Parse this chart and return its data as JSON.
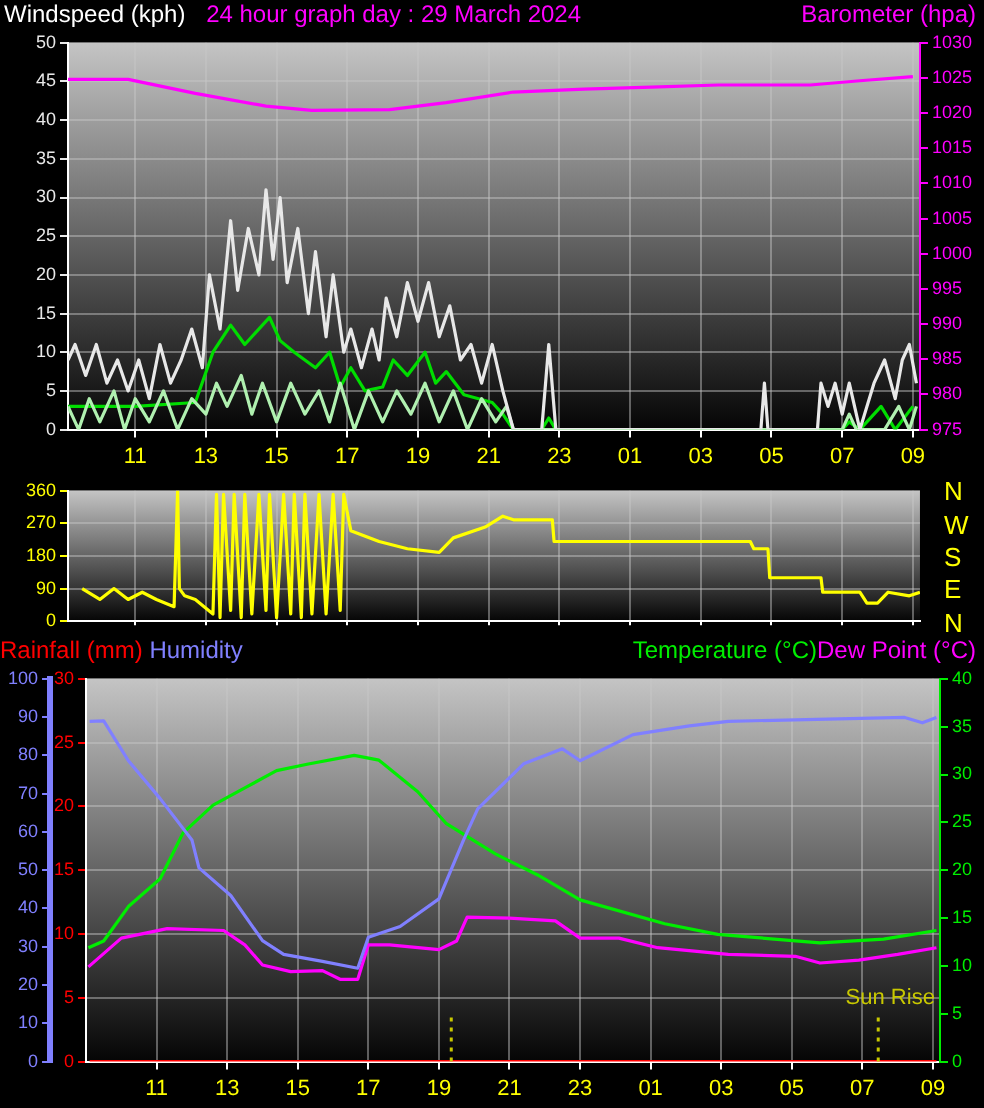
{
  "chart_data": [
    {
      "type": "line",
      "title": "24 hour graph day : 29 March 2024",
      "ylabel": "Windspeed (kph)",
      "y2label": "Barometer (hpa)",
      "xlim": [
        "2024-03-29T09:06",
        "2024-03-30T09:12"
      ],
      "xticks": [
        {
          "value": "2024-03-29T11:00",
          "label": "11"
        },
        {
          "value": "2024-03-29T13:00",
          "label": "13"
        },
        {
          "value": "2024-03-29T15:00",
          "label": "15"
        },
        {
          "value": "2024-03-29T17:00",
          "label": "17"
        },
        {
          "value": "2024-03-29T19:00",
          "label": "19"
        },
        {
          "value": "2024-03-29T21:00",
          "label": "21"
        },
        {
          "value": "2024-03-29T23:00",
          "label": "23"
        },
        {
          "value": "2024-03-30T01:00",
          "label": "01"
        },
        {
          "value": "2024-03-30T03:00",
          "label": "03"
        },
        {
          "value": "2024-03-30T05:00",
          "label": "05"
        },
        {
          "value": "2024-03-30T07:00",
          "label": "07"
        },
        {
          "value": "2024-03-30T09:00",
          "label": "09"
        }
      ],
      "ylim": [
        0,
        50
      ],
      "yticks": [
        0,
        5,
        10,
        15,
        20,
        25,
        30,
        35,
        40,
        45,
        50
      ],
      "y2lim": [
        975,
        1030
      ],
      "y2ticks": [
        975,
        980,
        985,
        990,
        995,
        1000,
        1005,
        1010,
        1015,
        1020,
        1025,
        1030
      ],
      "grid": true,
      "legend": false,
      "marker": "none",
      "line_style": "solid",
      "series": [
        {
          "color": "#e8e8e8",
          "x": [
            "2024-03-29T09:06",
            "2024-03-29T09:18",
            "2024-03-29T09:36",
            "2024-03-29T09:54",
            "2024-03-29T10:12",
            "2024-03-29T10:30",
            "2024-03-29T10:48",
            "2024-03-29T11:06",
            "2024-03-29T11:24",
            "2024-03-29T11:42",
            "2024-03-29T12:00",
            "2024-03-29T12:18",
            "2024-03-29T12:36",
            "2024-03-29T12:54",
            "2024-03-29T13:06",
            "2024-03-29T13:24",
            "2024-03-29T13:42",
            "2024-03-29T13:54",
            "2024-03-29T14:12",
            "2024-03-29T14:30",
            "2024-03-29T14:42",
            "2024-03-29T14:54",
            "2024-03-29T15:06",
            "2024-03-29T15:18",
            "2024-03-29T15:36",
            "2024-03-29T15:54",
            "2024-03-29T16:06",
            "2024-03-29T16:24",
            "2024-03-29T16:36",
            "2024-03-29T16:54",
            "2024-03-29T17:06",
            "2024-03-29T17:24",
            "2024-03-29T17:42",
            "2024-03-29T17:54",
            "2024-03-29T18:06",
            "2024-03-29T18:24",
            "2024-03-29T18:42",
            "2024-03-29T19:00",
            "2024-03-29T19:18",
            "2024-03-29T19:36",
            "2024-03-29T19:54",
            "2024-03-29T20:12",
            "2024-03-29T20:30",
            "2024-03-29T20:48",
            "2024-03-29T21:06",
            "2024-03-29T21:24",
            "2024-03-29T21:42",
            "2024-03-29T22:30",
            "2024-03-29T22:42",
            "2024-03-29T22:54",
            "2024-03-30T04:42",
            "2024-03-30T04:48",
            "2024-03-30T04:54",
            "2024-03-30T06:18",
            "2024-03-30T06:24",
            "2024-03-30T06:36",
            "2024-03-30T06:48",
            "2024-03-30T07:00",
            "2024-03-30T07:12",
            "2024-03-30T07:30",
            "2024-03-30T07:54",
            "2024-03-30T08:12",
            "2024-03-30T08:30",
            "2024-03-30T08:42",
            "2024-03-30T08:54",
            "2024-03-30T09:06"
          ],
          "values": [
            9,
            11,
            7,
            11,
            6,
            9,
            5,
            9,
            4,
            11,
            6,
            9,
            13,
            8,
            20,
            13,
            27,
            18,
            26,
            20,
            31,
            22,
            30,
            19,
            26,
            15,
            23,
            12,
            20,
            10,
            13,
            8,
            13,
            9,
            17,
            12,
            19,
            14,
            19,
            12,
            16,
            9,
            11,
            6,
            11,
            5,
            0,
            0,
            11,
            0,
            0,
            6,
            0,
            0,
            6,
            3,
            6,
            2,
            6,
            0,
            6,
            9,
            4,
            9,
            11,
            6
          ]
        },
        {
          "color": "#b0f0b0",
          "x": [
            "2024-03-29T09:06",
            "2024-03-29T09:24",
            "2024-03-29T09:42",
            "2024-03-29T10:00",
            "2024-03-29T10:24",
            "2024-03-29T10:42",
            "2024-03-29T11:00",
            "2024-03-29T11:24",
            "2024-03-29T11:48",
            "2024-03-29T12:12",
            "2024-03-29T12:36",
            "2024-03-29T13:00",
            "2024-03-29T13:18",
            "2024-03-29T13:36",
            "2024-03-29T14:00",
            "2024-03-29T14:18",
            "2024-03-29T14:36",
            "2024-03-29T15:00",
            "2024-03-29T15:24",
            "2024-03-29T15:48",
            "2024-03-29T16:12",
            "2024-03-29T16:30",
            "2024-03-29T16:48",
            "2024-03-29T17:12",
            "2024-03-29T17:36",
            "2024-03-29T18:00",
            "2024-03-29T18:24",
            "2024-03-29T18:48",
            "2024-03-29T19:12",
            "2024-03-29T19:36",
            "2024-03-29T20:00",
            "2024-03-29T20:24",
            "2024-03-29T20:48",
            "2024-03-29T21:12",
            "2024-03-29T21:30",
            "2024-03-29T21:42",
            "2024-03-30T07:00",
            "2024-03-30T07:12",
            "2024-03-30T07:24",
            "2024-03-30T08:12",
            "2024-03-30T08:36",
            "2024-03-30T08:54",
            "2024-03-30T09:06"
          ],
          "values": [
            3,
            0,
            4,
            1,
            5,
            0,
            4,
            1,
            5,
            0,
            4,
            2,
            6,
            3,
            7,
            2,
            6,
            1,
            6,
            2,
            5,
            1,
            6,
            0,
            5,
            1,
            5,
            2,
            6,
            1,
            5,
            0,
            4,
            1,
            3,
            0,
            0,
            2,
            0,
            0,
            3,
            0,
            3
          ]
        },
        {
          "color": "#00dd00",
          "x": [
            "2024-03-29T09:06",
            "2024-03-29T11:00",
            "2024-03-29T12:42",
            "2024-03-29T13:12",
            "2024-03-29T13:42",
            "2024-03-29T14:06",
            "2024-03-29T14:48",
            "2024-03-29T15:06",
            "2024-03-29T15:30",
            "2024-03-29T16:06",
            "2024-03-29T16:30",
            "2024-03-29T16:48",
            "2024-03-29T17:06",
            "2024-03-29T17:30",
            "2024-03-29T18:00",
            "2024-03-29T18:18",
            "2024-03-29T18:42",
            "2024-03-29T19:12",
            "2024-03-29T19:30",
            "2024-03-29T19:48",
            "2024-03-29T20:18",
            "2024-03-29T21:06",
            "2024-03-29T21:24",
            "2024-03-29T21:42",
            "2024-03-29T22:30",
            "2024-03-29T22:42",
            "2024-03-29T22:54",
            "2024-03-30T07:00",
            "2024-03-30T07:12",
            "2024-03-30T07:30",
            "2024-03-30T08:06",
            "2024-03-30T08:30",
            "2024-03-30T09:00"
          ],
          "values": [
            3,
            3,
            3.5,
            10,
            13.5,
            11,
            14.5,
            11.5,
            10,
            8,
            10,
            5.5,
            8,
            5,
            5.5,
            9,
            7,
            10,
            6,
            7.5,
            4.5,
            3.5,
            2,
            0,
            0,
            1.5,
            0,
            0,
            1,
            0,
            3,
            0,
            3
          ]
        },
        {
          "axis": "y2",
          "color": "#ff00ff",
          "x": [
            "2024-03-29T09:06",
            "2024-03-29T10:48",
            "2024-03-29T12:42",
            "2024-03-29T14:42",
            "2024-03-29T16:00",
            "2024-03-29T18:12",
            "2024-03-29T19:48",
            "2024-03-29T21:42",
            "2024-03-29T23:42",
            "2024-03-30T01:36",
            "2024-03-30T03:30",
            "2024-03-30T06:06",
            "2024-03-30T07:30",
            "2024-03-30T09:00"
          ],
          "values": [
            1024.8,
            1024.8,
            1022.8,
            1021,
            1020.4,
            1020.5,
            1021.5,
            1023,
            1023.4,
            1023.7,
            1024,
            1024,
            1024.6,
            1025.2
          ]
        }
      ]
    },
    {
      "type": "line",
      "xlim": [
        "2024-03-29T09:06",
        "2024-03-30T09:12"
      ],
      "tick_labels": "y",
      "xticks": [
        "2024-03-29T11:00",
        "2024-03-29T13:00",
        "2024-03-29T15:00",
        "2024-03-29T17:00",
        "2024-03-29T19:00",
        "2024-03-29T21:00",
        "2024-03-29T23:00",
        "2024-03-30T01:00",
        "2024-03-30T03:00",
        "2024-03-30T05:00",
        "2024-03-30T07:00",
        "2024-03-30T09:00"
      ],
      "ylim": [
        0,
        360
      ],
      "yticks": [
        0,
        90,
        180,
        270,
        360
      ],
      "annotations": [
        "N",
        "W",
        "S",
        "E",
        "N"
      ],
      "grid": true,
      "legend": false,
      "marker": "none",
      "line_style": "solid",
      "series": [
        {
          "color": "#ffff00",
          "x": [
            "2024-03-29T09:30",
            "2024-03-29T10:00",
            "2024-03-29T10:24",
            "2024-03-29T10:48",
            "2024-03-29T11:12",
            "2024-03-29T11:36",
            "2024-03-29T12:06",
            "2024-03-29T12:12",
            "2024-03-29T12:15",
            "2024-03-29T12:24",
            "2024-03-29T12:42",
            "2024-03-29T13:12",
            "2024-03-29T13:18",
            "2024-03-29T13:24",
            "2024-03-29T13:30",
            "2024-03-29T13:42",
            "2024-03-29T13:48",
            "2024-03-29T14:00",
            "2024-03-29T14:06",
            "2024-03-29T14:18",
            "2024-03-29T14:30",
            "2024-03-29T14:42",
            "2024-03-29T14:48",
            "2024-03-29T15:00",
            "2024-03-29T15:12",
            "2024-03-29T15:24",
            "2024-03-29T15:30",
            "2024-03-29T15:42",
            "2024-03-29T15:48",
            "2024-03-29T16:00",
            "2024-03-29T16:12",
            "2024-03-29T16:24",
            "2024-03-29T16:36",
            "2024-03-29T16:48",
            "2024-03-29T16:54",
            "2024-03-29T17:06",
            "2024-03-29T17:54",
            "2024-03-29T18:42",
            "2024-03-29T19:36",
            "2024-03-29T20:00",
            "2024-03-29T20:54",
            "2024-03-29T21:24",
            "2024-03-29T21:42",
            "2024-03-29T22:48",
            "2024-03-29T22:51",
            "2024-03-30T04:24",
            "2024-03-30T04:30",
            "2024-03-30T04:54",
            "2024-03-30T04:57",
            "2024-03-30T06:24",
            "2024-03-30T06:27",
            "2024-03-30T07:30",
            "2024-03-30T07:42",
            "2024-03-30T08:00",
            "2024-03-30T08:18",
            "2024-03-30T08:54",
            "2024-03-30T09:12"
          ],
          "values": [
            90,
            60,
            90,
            60,
            80,
            60,
            40,
            360,
            90,
            70,
            60,
            20,
            350,
            10,
            350,
            30,
            350,
            10,
            350,
            20,
            350,
            30,
            350,
            10,
            350,
            20,
            350,
            10,
            350,
            20,
            350,
            20,
            350,
            30,
            350,
            250,
            220,
            200,
            190,
            230,
            260,
            290,
            280,
            280,
            220,
            220,
            200,
            200,
            120,
            120,
            80,
            80,
            50,
            50,
            80,
            70,
            80
          ]
        }
      ]
    },
    {
      "type": "line",
      "xlim": [
        "2024-03-29T09:00",
        "2024-03-30T09:12"
      ],
      "xticks": [
        {
          "value": "2024-03-29T11:00",
          "label": "11"
        },
        {
          "value": "2024-03-29T13:00",
          "label": "13"
        },
        {
          "value": "2024-03-29T15:00",
          "label": "15"
        },
        {
          "value": "2024-03-29T17:00",
          "label": "17"
        },
        {
          "value": "2024-03-29T19:00",
          "label": "19"
        },
        {
          "value": "2024-03-29T21:00",
          "label": "21"
        },
        {
          "value": "2024-03-29T23:00",
          "label": "23"
        },
        {
          "value": "2024-03-30T01:00",
          "label": "01"
        },
        {
          "value": "2024-03-30T03:00",
          "label": "03"
        },
        {
          "value": "2024-03-30T05:00",
          "label": "05"
        },
        {
          "value": "2024-03-30T07:00",
          "label": "07"
        },
        {
          "value": "2024-03-30T09:00",
          "label": "09"
        }
      ],
      "ylim": [
        0,
        30
      ],
      "yticks": [
        0,
        5,
        10,
        15,
        20,
        25,
        30
      ],
      "y2lim": [
        0,
        40
      ],
      "y2ticks": [
        0,
        5,
        10,
        15,
        20,
        25,
        30,
        35,
        40
      ],
      "y3lim": [
        0,
        100
      ],
      "y3ticks": [
        0,
        10,
        20,
        30,
        40,
        50,
        60,
        70,
        80,
        90,
        100
      ],
      "grid": true,
      "legend": "top",
      "marker": "none",
      "line_style": "solid",
      "ref_lines": [
        {
          "axis": "x",
          "value": "2024-03-29T19:21",
          "label": null,
          "color": "#c8c800",
          "line_style": "dotted"
        },
        {
          "axis": "x",
          "value": "2024-03-30T07:27",
          "label": "Sun Rise",
          "color": "#c8c800",
          "line_style": "dotted"
        }
      ],
      "series": [
        {
          "name": "Rainfall (mm)",
          "color": "#ff0000",
          "x": [
            "2024-03-29T09:06",
            "2024-03-30T09:06"
          ],
          "values": [
            0,
            0
          ]
        },
        {
          "name": "Humidity",
          "axis": "y3",
          "color": "#8080ff",
          "x": [
            "2024-03-29T09:06",
            "2024-03-29T09:30",
            "2024-03-29T10:12",
            "2024-03-29T11:06",
            "2024-03-29T12:00",
            "2024-03-29T12:12",
            "2024-03-29T13:06",
            "2024-03-29T14:00",
            "2024-03-29T14:36",
            "2024-03-29T15:42",
            "2024-03-29T16:42",
            "2024-03-29T17:00",
            "2024-03-29T17:54",
            "2024-03-29T19:00",
            "2024-03-29T19:42",
            "2024-03-29T20:06",
            "2024-03-29T21:24",
            "2024-03-29T22:30",
            "2024-03-29T23:00",
            "2024-03-30T00:30",
            "2024-03-30T02:06",
            "2024-03-30T03:12",
            "2024-03-30T08:12",
            "2024-03-30T08:42",
            "2024-03-30T09:06"
          ],
          "values": [
            88.9,
            89,
            78.6,
            68.7,
            57.9,
            50.6,
            43.4,
            31.6,
            28,
            26.2,
            24.4,
            32.5,
            35.3,
            42.5,
            57.9,
            66,
            77.8,
            81.7,
            78.6,
            85.4,
            87.7,
            88.9,
            89.9,
            88.5,
            89.9
          ]
        },
        {
          "name": "Temperature (°C)",
          "axis": "y2",
          "color": "#00ee00",
          "x": [
            "2024-03-29T09:04",
            "2024-03-29T09:30",
            "2024-03-29T10:12",
            "2024-03-29T11:06",
            "2024-03-29T11:45",
            "2024-03-29T12:36",
            "2024-03-29T13:30",
            "2024-03-29T14:24",
            "2024-03-29T15:18",
            "2024-03-29T16:36",
            "2024-03-29T17:18",
            "2024-03-29T18:24",
            "2024-03-29T19:12",
            "2024-03-29T20:36",
            "2024-03-29T21:48",
            "2024-03-29T23:00",
            "2024-03-30T01:24",
            "2024-03-30T02:54",
            "2024-03-30T05:48",
            "2024-03-30T07:36",
            "2024-03-30T09:06"
          ],
          "values": [
            11.9,
            12.6,
            16.2,
            19.1,
            23.9,
            26.8,
            28.6,
            30.4,
            31.1,
            32,
            31.5,
            28.2,
            24.9,
            21.7,
            19.5,
            16.9,
            14.4,
            13.3,
            12.4,
            12.8,
            13.7
          ]
        },
        {
          "name": "Dew Point (°C)",
          "axis": "y2",
          "color": "#ff00ff",
          "x": [
            "2024-03-29T09:04",
            "2024-03-29T10:00",
            "2024-03-29T11:18",
            "2024-03-29T12:54",
            "2024-03-29T13:30",
            "2024-03-29T14:00",
            "2024-03-29T14:48",
            "2024-03-29T15:42",
            "2024-03-29T16:12",
            "2024-03-29T16:42",
            "2024-03-29T17:00",
            "2024-03-29T17:36",
            "2024-03-29T19:00",
            "2024-03-29T19:30",
            "2024-03-29T19:48",
            "2024-03-29T21:00",
            "2024-03-29T22:18",
            "2024-03-29T23:00",
            "2024-03-30T00:06",
            "2024-03-30T01:12",
            "2024-03-30T03:12",
            "2024-03-30T05:06",
            "2024-03-30T05:48",
            "2024-03-30T06:54",
            "2024-03-30T08:00",
            "2024-03-30T09:06"
          ],
          "values": [
            9.9,
            12.9,
            13.9,
            13.7,
            12.2,
            10.1,
            9.4,
            9.5,
            8.6,
            8.6,
            12.2,
            12.2,
            11.7,
            12.6,
            15.1,
            15,
            14.7,
            12.9,
            12.9,
            11.9,
            11.2,
            11,
            10.3,
            10.6,
            11.2,
            11.9
          ]
        }
      ]
    }
  ]
}
